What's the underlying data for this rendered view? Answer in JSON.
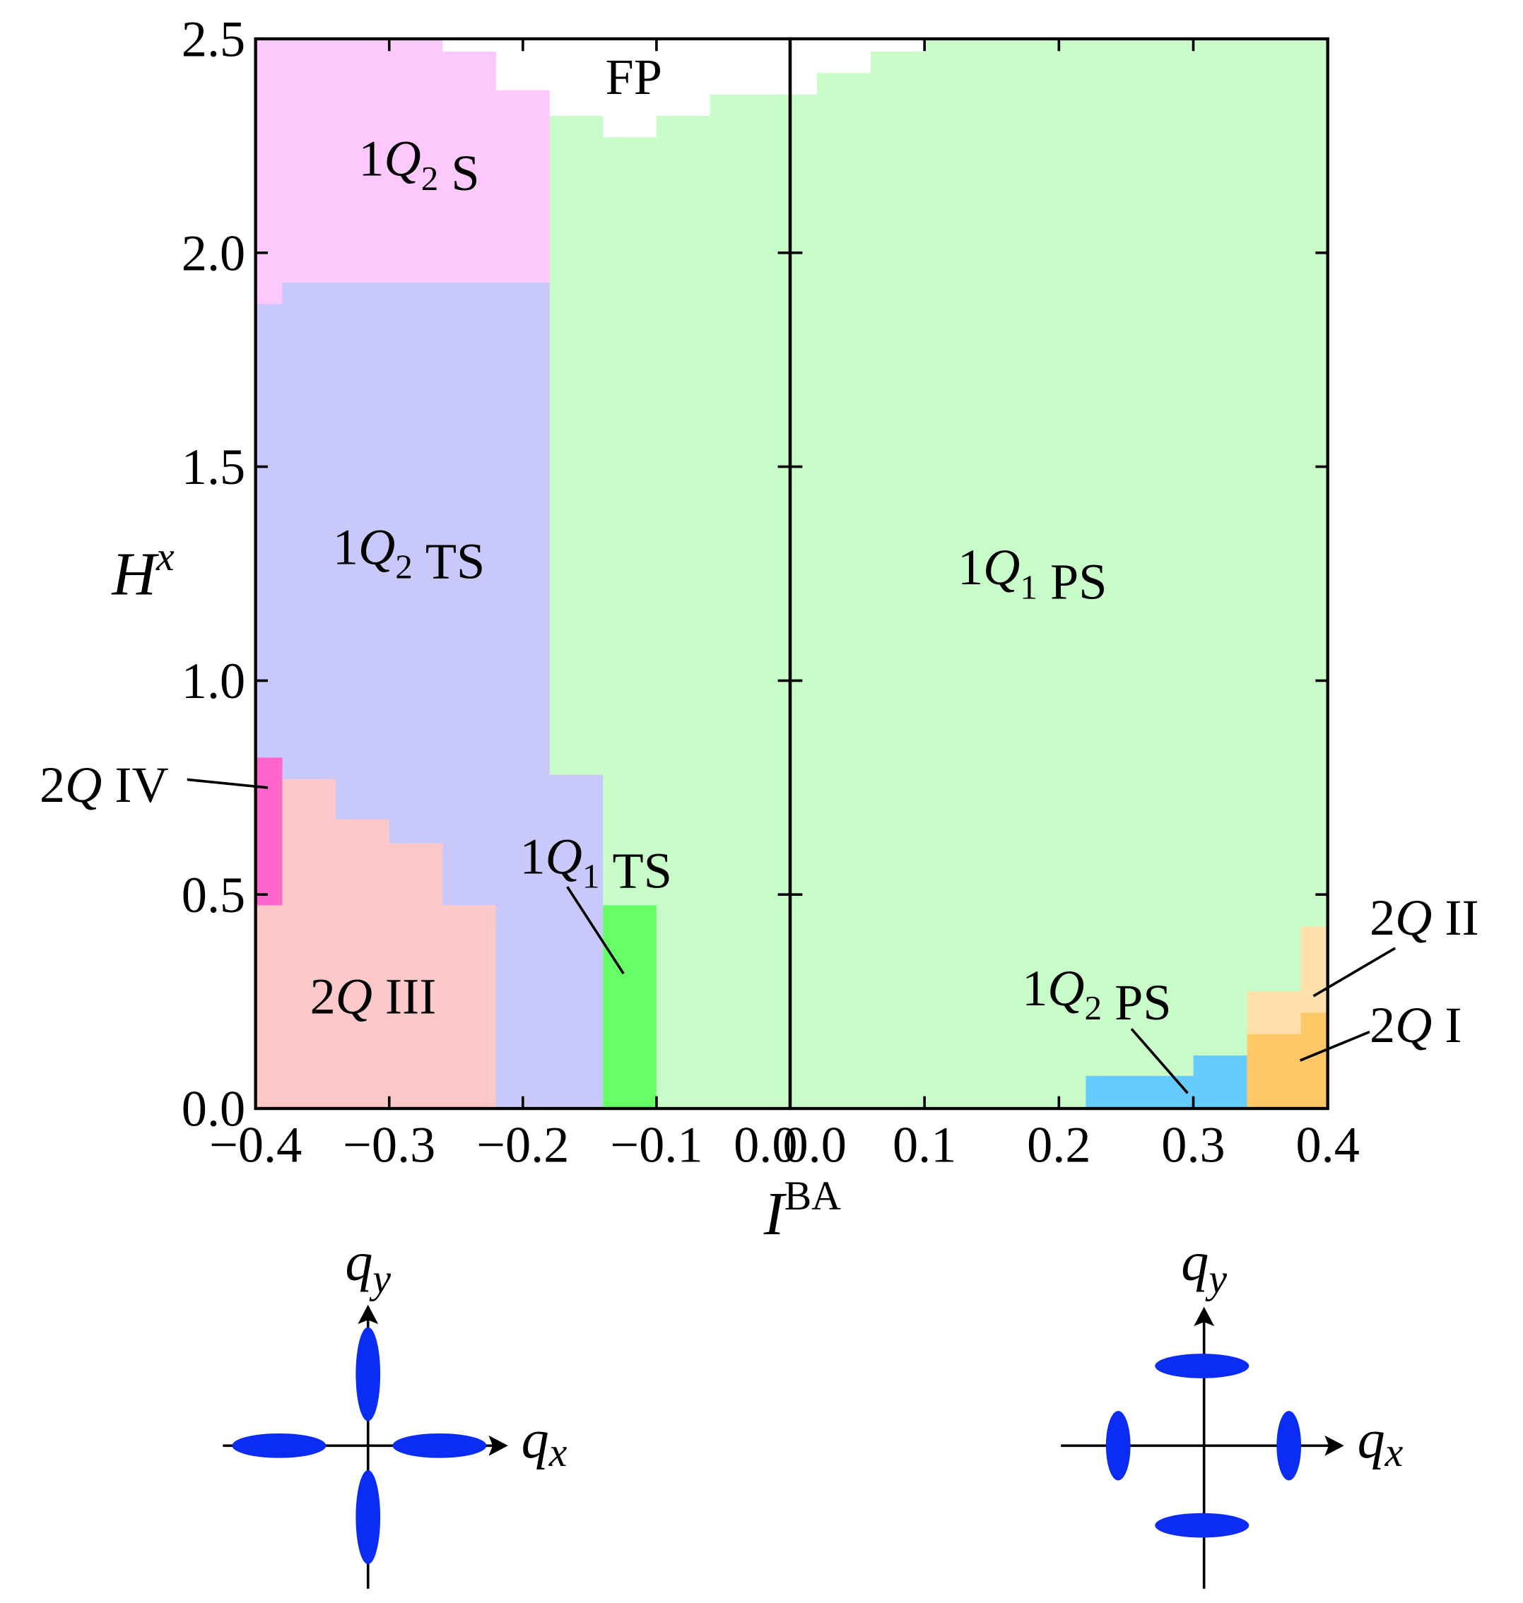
{
  "chart_data": {
    "type": "phase-diagram",
    "xlabel": "IBA",
    "ylabel": "Hx",
    "ylim": [
      0,
      2.5
    ],
    "yticks": [
      {
        "value": 0,
        "label": "0.0"
      },
      0.5,
      {
        "value": 1,
        "label": "1.0"
      },
      1.5,
      {
        "value": 2,
        "label": "2.0"
      },
      2.5
    ],
    "panels": [
      {
        "xlim": [
          -0.4,
          0
        ],
        "xticks": [
          {
            "value": -0.4,
            "label": "−0.4"
          },
          {
            "value": -0.3,
            "label": "−0.3"
          },
          {
            "value": -0.2,
            "label": "−0.2"
          },
          {
            "value": -0.1,
            "label": "−0.1"
          },
          {
            "value": 0,
            "label": "0.0"
          }
        ],
        "regions": [
          {
            "color": "#c8fcc8",
            "x": [
              -0.4,
              -0.4,
              0,
              0
            ],
            "y": [
              0,
              2.5,
              2.5,
              0
            ]
          },
          {
            "name": "1Q2 S",
            "color": "#fdc8fc",
            "x": [
              -0.4,
              -0.4,
              -0.14,
              -0.14,
              -0.18,
              -0.18,
              -0.38,
              -0.38
            ],
            "y": [
              1.88,
              2.5,
              2.5,
              2.32,
              2.32,
              1.93,
              1.93,
              1.88
            ]
          },
          {
            "name": "FP",
            "color": "#ffffff",
            "x": [
              -0.26,
              0,
              0,
              -0.06,
              -0.06,
              -0.1,
              -0.1,
              -0.14,
              -0.14,
              -0.18,
              -0.18,
              -0.22,
              -0.22,
              -0.26
            ],
            "y": [
              2.5,
              2.5,
              2.37,
              2.37,
              2.32,
              2.32,
              2.27,
              2.27,
              2.32,
              2.32,
              2.38,
              2.38,
              2.47,
              2.47
            ]
          },
          {
            "name": "1Q2 TS",
            "color": "#c8c8fa",
            "x": [
              -0.4,
              -0.4,
              -0.38,
              -0.38,
              -0.18,
              -0.18,
              -0.14,
              -0.14
            ],
            "y": [
              0,
              1.88,
              1.88,
              1.93,
              1.93,
              0.78,
              0.78,
              0
            ]
          },
          {
            "name": "2Q III",
            "color": "#fcc8c8",
            "x": [
              -0.4,
              -0.4,
              -0.34,
              -0.34,
              -0.3,
              -0.3,
              -0.26,
              -0.26,
              -0.22,
              -0.22
            ],
            "y": [
              0,
              0.77,
              0.77,
              0.675,
              0.675,
              0.62,
              0.62,
              0.475,
              0.475,
              0
            ]
          },
          {
            "name": "2Q IV",
            "color": "#ff66cc",
            "x": [
              -0.4,
              -0.4,
              -0.38,
              -0.38
            ],
            "y": [
              0.475,
              0.82,
              0.82,
              0.475
            ]
          },
          {
            "name": "1Q1 TS",
            "color": "#66ff66",
            "x": [
              -0.14,
              -0.14,
              -0.1,
              -0.1
            ],
            "y": [
              0,
              0.475,
              0.475,
              0
            ]
          }
        ]
      },
      {
        "xlim": [
          0,
          0.4
        ],
        "xticks": [
          {
            "value": 0,
            "label": "0.0"
          },
          0.1,
          0.2,
          0.3,
          0.4
        ],
        "regions": [
          {
            "name": "1Q1 PS",
            "color": "#c8fcc8",
            "x": [
              0,
              0,
              0.4,
              0.4
            ],
            "y": [
              0,
              2.5,
              2.5,
              0
            ]
          },
          {
            "color": "#ffffff",
            "x": [
              0,
              0,
              0.02,
              0.02,
              0.06,
              0.06,
              0.1,
              0.1
            ],
            "y": [
              2.5,
              2.37,
              2.37,
              2.42,
              2.42,
              2.47,
              2.47,
              2.5
            ]
          },
          {
            "name": "1Q2 PS",
            "color": "#66ccff",
            "x": [
              0.22,
              0.22,
              0.3,
              0.3,
              0.34,
              0.34
            ],
            "y": [
              0,
              0.076,
              0.076,
              0.124,
              0.124,
              0
            ]
          },
          {
            "name": "2Q I",
            "color": "#ffc766",
            "x": [
              0.34,
              0.34,
              0.38,
              0.38,
              0.4,
              0.4
            ],
            "y": [
              0,
              0.174,
              0.174,
              0.224,
              0.224,
              0
            ]
          },
          {
            "name": "2Q II",
            "color": "#ffe0aa",
            "x": [
              0.34,
              0.34,
              0.38,
              0.38,
              0.4,
              0.4,
              0.38,
              0.38
            ],
            "y": [
              0.174,
              0.274,
              0.274,
              0.425,
              0.425,
              0.224,
              0.224,
              0.174
            ]
          }
        ]
      }
    ],
    "insets": [
      {
        "ylabel": "qy",
        "xlabel": "qx"
      },
      {
        "ylabel": "qy",
        "xlabel": "qx"
      }
    ]
  }
}
